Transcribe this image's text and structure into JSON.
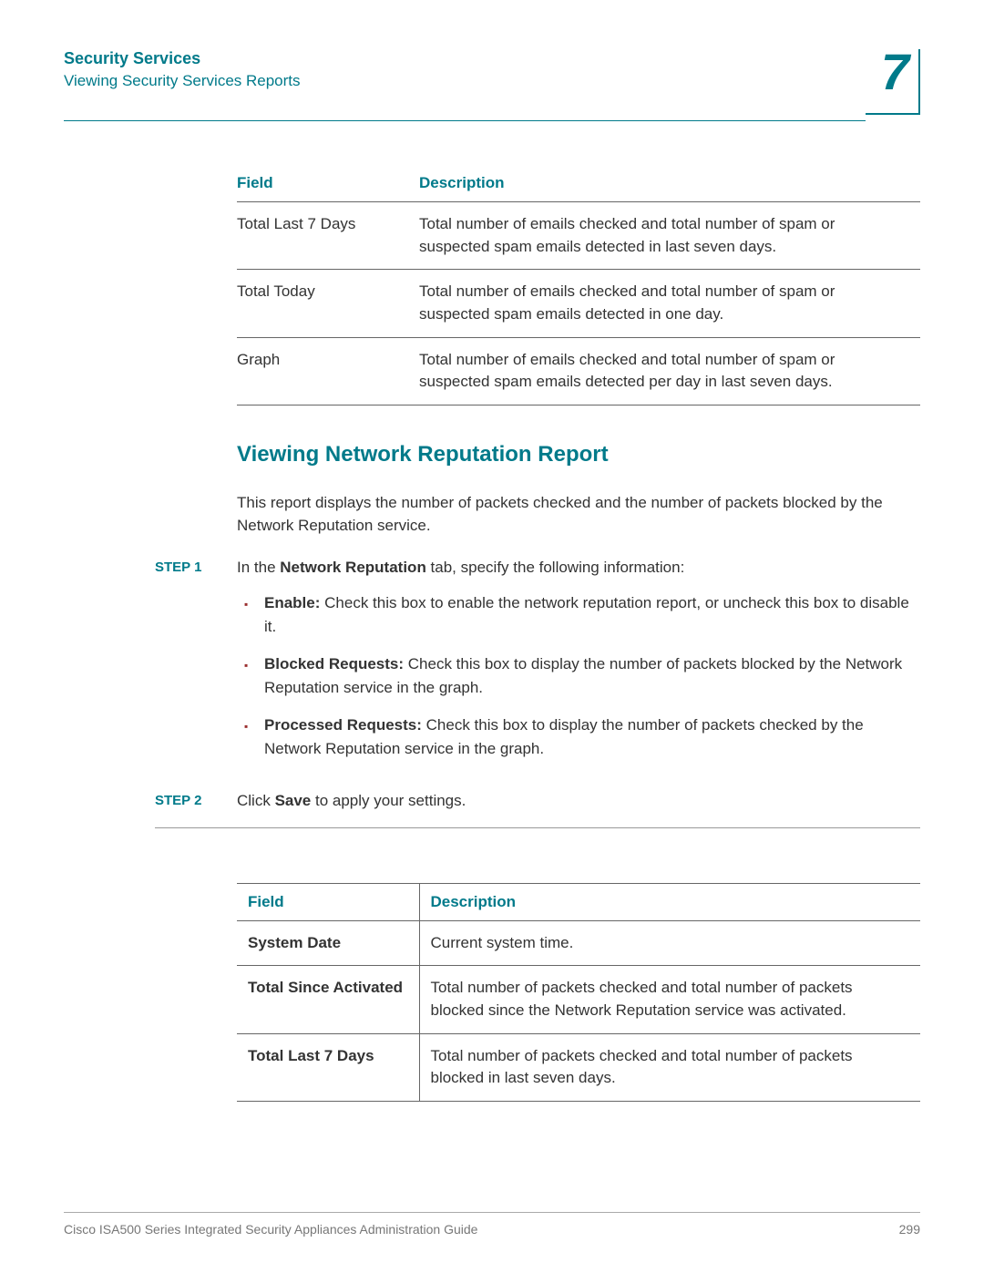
{
  "header": {
    "chapter_title": "Security Services",
    "breadcrumb": "Viewing Security Services Reports",
    "chapter_number": "7"
  },
  "table1": {
    "headers": {
      "field": "Field",
      "description": "Description"
    },
    "rows": [
      {
        "field": "Total Last 7 Days",
        "desc": "Total number of emails checked and total number of spam or suspected spam emails detected in last seven days."
      },
      {
        "field": "Total Today",
        "desc": "Total number of emails checked and total number of spam or suspected spam emails detected in one day."
      },
      {
        "field": "Graph",
        "desc": "Total number of emails checked and total number of spam or suspected spam emails detected per day in last seven days."
      }
    ]
  },
  "section": {
    "heading": "Viewing Network Reputation Report",
    "intro": "This report displays the number of packets checked and the number of packets blocked by the Network Reputation service."
  },
  "steps": {
    "step1": {
      "label": "STEP 1",
      "text_prefix": "In the ",
      "text_bold": "Network Reputation",
      "text_suffix": " tab, specify the following information:",
      "bullets": [
        {
          "bold": "Enable:",
          "rest": " Check this box to enable the network reputation report, or uncheck this box to disable it."
        },
        {
          "bold": "Blocked Requests:",
          "rest": " Check this box to display the number of packets blocked by the Network Reputation service in the graph."
        },
        {
          "bold": "Processed Requests:",
          "rest": " Check this box to display the number of packets checked by the Network Reputation service in the graph."
        }
      ]
    },
    "step2": {
      "label": "STEP 2",
      "text_prefix": "Click ",
      "text_bold": "Save",
      "text_suffix": " to apply your settings."
    }
  },
  "table2": {
    "headers": {
      "field": "Field",
      "description": "Description"
    },
    "rows": [
      {
        "field": "System Date",
        "desc": "Current system time."
      },
      {
        "field": "Total Since Activated",
        "desc": "Total number of packets checked and total number of packets blocked since the Network Reputation service was activated."
      },
      {
        "field": "Total Last 7 Days",
        "desc": "Total number of packets checked and total number of packets blocked in last seven days."
      }
    ]
  },
  "footer": {
    "doc_title": "Cisco ISA500 Series Integrated Security Appliances Administration Guide",
    "page_number": "299"
  }
}
